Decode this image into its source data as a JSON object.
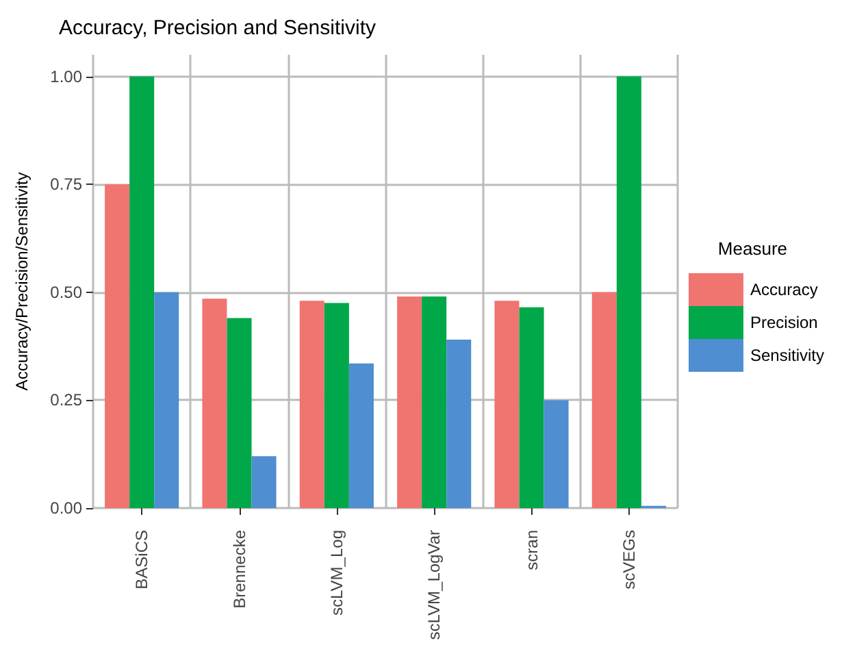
{
  "chart_data": {
    "type": "bar",
    "title": "Accuracy, Precision and Sensitivity",
    "xlabel": null,
    "ylabel": "Accuracy/Precision/Sensitivity",
    "legend_title": "Measure",
    "categories": [
      "BASiCS",
      "Brennecke",
      "scLVM_Log",
      "scLVM_LogVar",
      "scran",
      "scVEGs"
    ],
    "series": [
      {
        "name": "Accuracy",
        "color": "#f07470",
        "values": [
          0.75,
          0.485,
          0.48,
          0.49,
          0.48,
          0.5
        ]
      },
      {
        "name": "Precision",
        "color": "#00a84a",
        "values": [
          1.0,
          0.44,
          0.475,
          0.49,
          0.465,
          1.0
        ]
      },
      {
        "name": "Sensitivity",
        "color": "#4f8ed0",
        "values": [
          0.5,
          0.12,
          0.335,
          0.39,
          0.25,
          0.005
        ]
      }
    ],
    "ylim": [
      0,
      1.05
    ],
    "yticks": [
      {
        "value": 0,
        "label": "0.00"
      },
      {
        "value": 0.25,
        "label": "0.25"
      },
      {
        "value": 0.5,
        "label": "0.50"
      },
      {
        "value": 0.75,
        "label": "0.75"
      },
      {
        "value": 1,
        "label": "1.00"
      }
    ],
    "grid": true,
    "legend": "right"
  }
}
